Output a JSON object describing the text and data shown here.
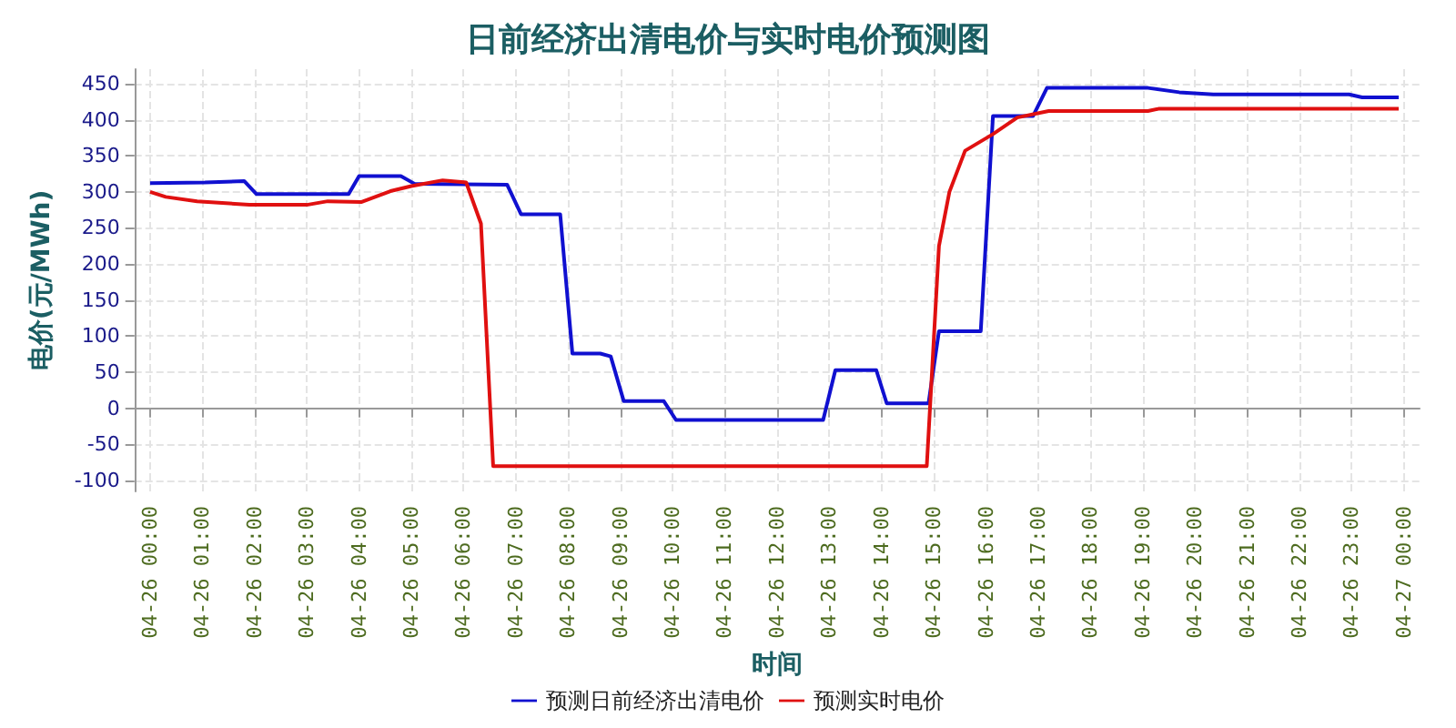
{
  "chart_data": {
    "type": "line",
    "title": "日前经济出清电价与实时电价预测图",
    "xlabel": "时间",
    "ylabel": "电价(元/MWh)",
    "xlim": [
      "--04-25T23:42",
      "--04-27T00:18"
    ],
    "xticks": [
      {
        "value": "--04-26T00:00",
        "label": "04-26 00:00"
      },
      {
        "value": "--04-26T01:00",
        "label": "04-26 01:00"
      },
      {
        "value": "--04-26T02:00",
        "label": "04-26 02:00"
      },
      {
        "value": "--04-26T03:00",
        "label": "04-26 03:00"
      },
      {
        "value": "--04-26T04:00",
        "label": "04-26 04:00"
      },
      {
        "value": "--04-26T05:00",
        "label": "04-26 05:00"
      },
      {
        "value": "--04-26T06:00",
        "label": "04-26 06:00"
      },
      {
        "value": "--04-26T07:00",
        "label": "04-26 07:00"
      },
      {
        "value": "--04-26T08:00",
        "label": "04-26 08:00"
      },
      {
        "value": "--04-26T09:00",
        "label": "04-26 09:00"
      },
      {
        "value": "--04-26T10:00",
        "label": "04-26 10:00"
      },
      {
        "value": "--04-26T11:00",
        "label": "04-26 11:00"
      },
      {
        "value": "--04-26T12:00",
        "label": "04-26 12:00"
      },
      {
        "value": "--04-26T13:00",
        "label": "04-26 13:00"
      },
      {
        "value": "--04-26T14:00",
        "label": "04-26 14:00"
      },
      {
        "value": "--04-26T15:00",
        "label": "04-26 15:00"
      },
      {
        "value": "--04-26T16:00",
        "label": "04-26 16:00"
      },
      {
        "value": "--04-26T17:00",
        "label": "04-26 17:00"
      },
      {
        "value": "--04-26T18:00",
        "label": "04-26 18:00"
      },
      {
        "value": "--04-26T19:00",
        "label": "04-26 19:00"
      },
      {
        "value": "--04-26T20:00",
        "label": "04-26 20:00"
      },
      {
        "value": "--04-26T21:00",
        "label": "04-26 21:00"
      },
      {
        "value": "--04-26T22:00",
        "label": "04-26 22:00"
      },
      {
        "value": "--04-26T23:00",
        "label": "04-26 23:00"
      },
      {
        "value": "--04-27T00:00",
        "label": "04-27 00:00"
      }
    ],
    "ylim": [
      -115,
      470
    ],
    "yticks": [
      -100,
      -50,
      0,
      50,
      100,
      150,
      200,
      250,
      300,
      350,
      400,
      450
    ],
    "grid": true,
    "legend": "bottom",
    "line_style": "solid",
    "series": [
      {
        "name": "预测日前经济出清电价",
        "color": "#1010d0",
        "x": [
          "--04-26T00:00",
          "--04-26T01:03",
          "--04-26T01:48",
          "--04-26T02:02",
          "--04-26T03:48",
          "--04-26T04:00",
          "--04-26T04:48",
          "--04-26T05:04",
          "--04-26T06:50",
          "--04-26T07:06",
          "--04-26T07:51",
          "--04-26T08:05",
          "--04-26T08:37",
          "--04-26T08:49",
          "--04-26T09:04",
          "--04-26T09:50",
          "--04-26T10:04",
          "--04-26T12:53",
          "--04-26T13:07",
          "--04-26T13:54",
          "--04-26T14:06",
          "--04-26T14:54",
          "--04-26T15:06",
          "--04-26T15:54",
          "--04-26T16:08",
          "--04-26T16:54",
          "--04-26T17:10",
          "--04-26T19:06",
          "--04-26T19:42",
          "--04-26T20:21",
          "--04-26T22:57",
          "--04-26T23:12",
          "--04-26T23:54"
        ],
        "values": [
          312,
          313,
          315,
          297,
          297,
          322,
          322,
          311,
          310,
          269,
          269,
          76,
          76,
          72,
          10,
          10,
          -16,
          -16,
          53,
          53,
          7,
          7,
          107,
          107,
          405,
          405,
          444,
          444,
          438,
          435,
          435,
          431,
          431
        ]
      },
      {
        "name": "预测实时电价",
        "color": "#e01010",
        "x": [
          "--04-26T00:00",
          "--04-26T00:18",
          "--04-26T00:54",
          "--04-26T01:54",
          "--04-26T03:00",
          "--04-26T03:24",
          "--04-26T04:03",
          "--04-26T04:36",
          "--04-26T05:00",
          "--04-26T05:36",
          "--04-26T06:03",
          "--04-26T06:20",
          "--04-26T06:34",
          "--04-26T14:52",
          "--04-26T15:06",
          "--04-26T15:18",
          "--04-26T15:36",
          "--04-26T16:08",
          "--04-26T16:36",
          "--04-26T17:12",
          "--04-26T19:06",
          "--04-26T19:18",
          "--04-26T23:54"
        ],
        "values": [
          300,
          293,
          287,
          282,
          282,
          287,
          286,
          301,
          308,
          316,
          313,
          256,
          -80,
          -80,
          225,
          300,
          357,
          380,
          403,
          412,
          412,
          415,
          415
        ]
      }
    ]
  }
}
